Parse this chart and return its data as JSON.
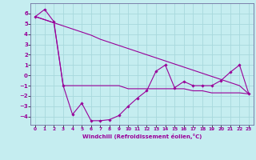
{
  "xlabel": "Windchill (Refroidissement éolien,°C)",
  "bg_color": "#c5edf0",
  "grid_color": "#a8d8dc",
  "line_color": "#990099",
  "x": [
    0,
    1,
    2,
    3,
    4,
    5,
    6,
    7,
    8,
    9,
    10,
    11,
    12,
    13,
    14,
    15,
    16,
    17,
    18,
    19,
    20,
    21,
    22,
    23
  ],
  "y_jagged": [
    5.7,
    6.4,
    5.2,
    -1.0,
    -3.8,
    -2.7,
    -4.4,
    -4.4,
    -4.3,
    -3.9,
    -3.0,
    -2.2,
    -1.5,
    0.4,
    1.0,
    -1.2,
    -0.6,
    -1.0,
    -1.0,
    -1.0,
    -0.5,
    0.3,
    1.0,
    -1.8
  ],
  "y_linear": [
    5.7,
    5.4,
    5.1,
    4.8,
    4.5,
    4.2,
    3.9,
    3.5,
    3.2,
    2.9,
    2.6,
    2.3,
    2.0,
    1.7,
    1.4,
    1.1,
    0.8,
    0.5,
    0.2,
    -0.1,
    -0.4,
    -0.7,
    -1.0,
    -1.8
  ],
  "y_flat": [
    5.7,
    5.4,
    5.1,
    -1.0,
    -1.0,
    -1.0,
    -1.0,
    -1.0,
    -1.0,
    -1.0,
    -1.3,
    -1.3,
    -1.3,
    -1.3,
    -1.3,
    -1.3,
    -1.3,
    -1.5,
    -1.5,
    -1.7,
    -1.7,
    -1.7,
    -1.7,
    -1.8
  ],
  "ylim": [
    -4.8,
    7.0
  ],
  "yticks": [
    -4,
    -3,
    -2,
    -1,
    0,
    1,
    2,
    3,
    4,
    5,
    6
  ],
  "xlim": [
    -0.5,
    23.5
  ],
  "xticks": [
    0,
    1,
    2,
    3,
    4,
    5,
    6,
    7,
    8,
    9,
    10,
    11,
    12,
    13,
    14,
    15,
    16,
    17,
    18,
    19,
    20,
    21,
    22,
    23
  ]
}
